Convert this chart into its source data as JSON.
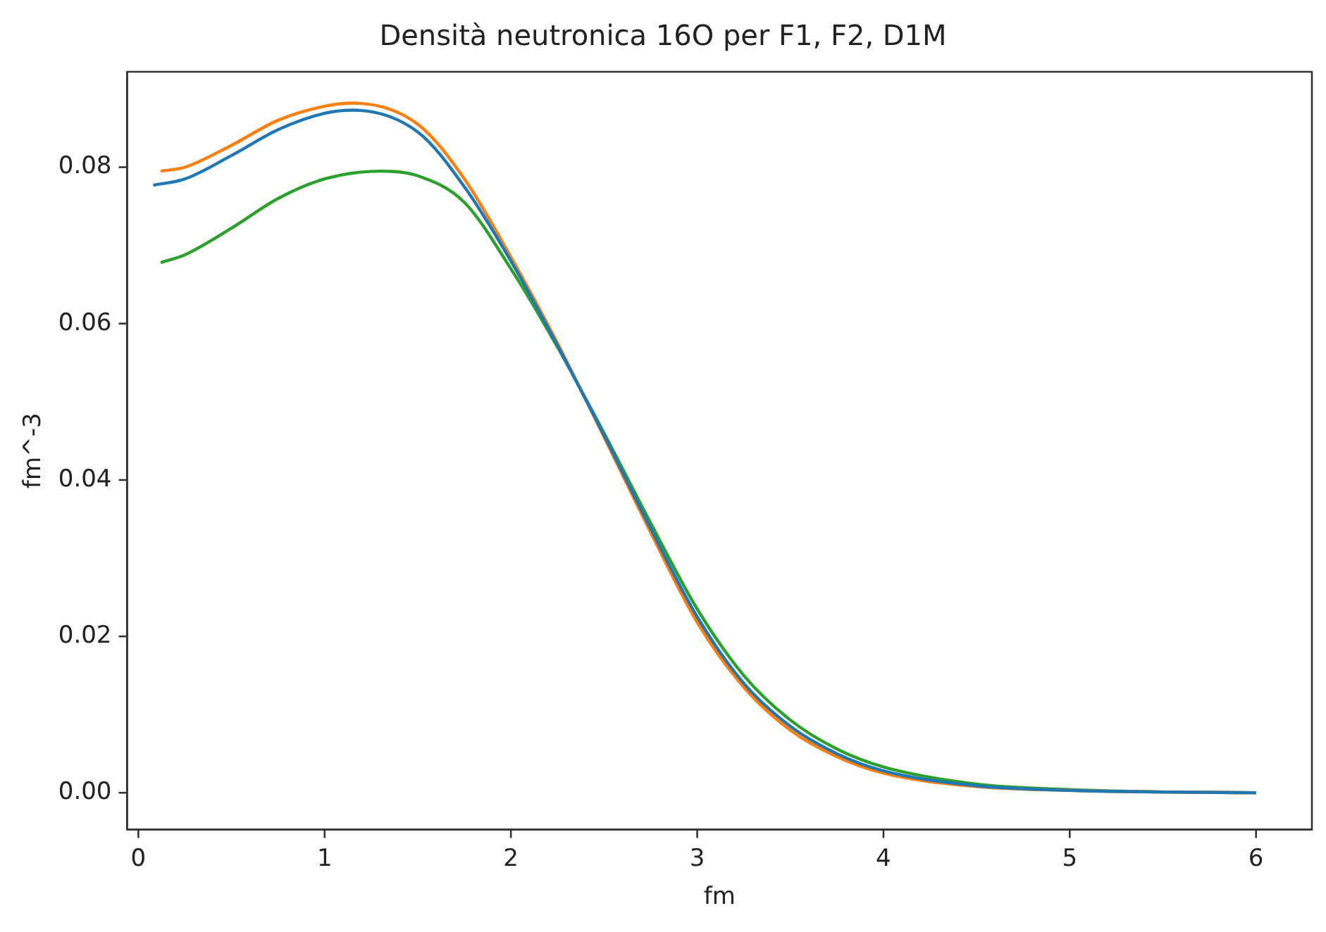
{
  "chart_data": {
    "type": "line",
    "title": "Densità neutronica 16O per F1, F2, D1M",
    "xlabel": "fm",
    "ylabel": "fm^-3",
    "xlim": [
      -0.06,
      6.3
    ],
    "ylim": [
      -0.0047,
      0.0922
    ],
    "xticks": [
      0,
      1,
      2,
      3,
      4,
      5,
      6
    ],
    "yticks": [
      {
        "value": 0,
        "label": "0.00"
      },
      {
        "value": 0.02,
        "label": "0.02"
      },
      {
        "value": 0.04,
        "label": "0.04"
      },
      {
        "value": 0.06,
        "label": "0.06"
      },
      {
        "value": 0.08,
        "label": "0.08"
      }
    ],
    "grid": false,
    "legend": false,
    "marker": "none",
    "line_style": "solid",
    "series": [
      {
        "color": "#1f77b4",
        "x": [
          0.08,
          0.25,
          0.5,
          0.75,
          1.0,
          1.15,
          1.5,
          1.75,
          2.0,
          2.25,
          2.5,
          2.75,
          3.0,
          3.25,
          3.5,
          3.75,
          4.0,
          4.5,
          5.0,
          5.5,
          6.0
        ],
        "values": [
          0.0777,
          0.0785,
          0.0815,
          0.0848,
          0.0869,
          0.0873,
          0.0845,
          0.0775,
          0.068,
          0.0572,
          0.0457,
          0.0338,
          0.0225,
          0.014,
          0.0085,
          0.005,
          0.0028,
          0.0009,
          0.0003,
          0.0001,
          0.0
        ]
      },
      {
        "color": "#ff7f0e",
        "x": [
          0.12,
          0.25,
          0.5,
          0.75,
          1.0,
          1.15,
          1.5,
          1.75,
          2.0,
          2.25,
          2.5,
          2.75,
          3.0,
          3.25,
          3.5,
          3.75,
          4.0,
          4.5,
          5.0,
          5.5,
          6.0
        ],
        "values": [
          0.0795,
          0.08,
          0.0828,
          0.086,
          0.0878,
          0.0882,
          0.0855,
          0.0785,
          0.0685,
          0.0575,
          0.0455,
          0.0333,
          0.0218,
          0.0135,
          0.008,
          0.0046,
          0.0025,
          0.0008,
          0.0003,
          0.0001,
          0.0
        ]
      },
      {
        "color": "#2ca02c",
        "x": [
          0.12,
          0.25,
          0.5,
          0.75,
          1.0,
          1.3,
          1.5,
          1.75,
          2.0,
          2.25,
          2.5,
          2.75,
          3.0,
          3.25,
          3.5,
          3.75,
          4.0,
          4.5,
          5.0,
          5.5,
          6.0
        ],
        "values": [
          0.0678,
          0.0688,
          0.0722,
          0.076,
          0.0785,
          0.0795,
          0.0789,
          0.0755,
          0.067,
          0.057,
          0.046,
          0.0345,
          0.0235,
          0.015,
          0.0093,
          0.0056,
          0.0033,
          0.0011,
          0.0004,
          0.0001,
          0.0
        ]
      }
    ]
  }
}
